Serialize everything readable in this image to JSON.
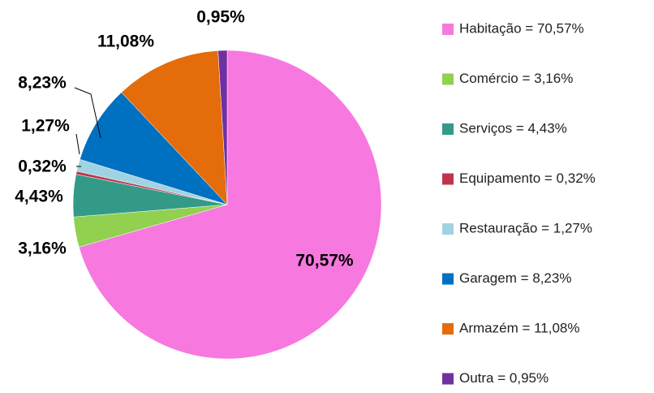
{
  "chart_data": {
    "type": "pie",
    "categories": [
      "Habitação = 70,57%",
      "Comércio = 3,16%",
      "Serviços = 4,43%",
      "Equipamento = 0,32%",
      "Restauração = 1,27%",
      "Garagem = 8,23%",
      "Armazém = 11,08%",
      "Outra = 0,95%"
    ],
    "values": [
      70.57,
      3.16,
      4.43,
      0.32,
      1.27,
      8.23,
      11.08,
      0.95
    ],
    "value_labels": [
      "70,57%",
      "3,16%",
      "4,43%",
      "0,32%",
      "1,27%",
      "8,23%",
      "11,08%",
      "0,95%"
    ],
    "colors": [
      "#f779df",
      "#92d050",
      "#339a88",
      "#c0344d",
      "#9fd3e4",
      "#0070c0",
      "#e46c0a",
      "#7030a0"
    ],
    "legend": "right"
  }
}
